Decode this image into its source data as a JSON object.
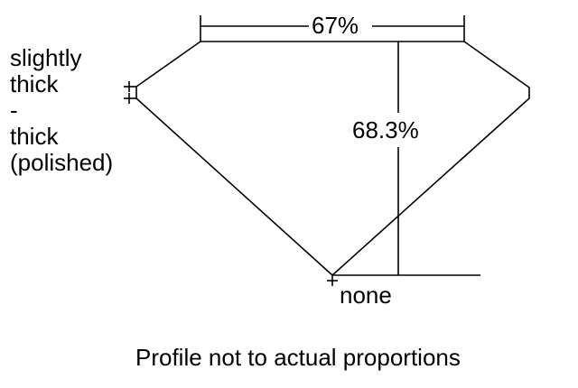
{
  "diagram": {
    "table_width_label": "67%",
    "total_depth_label": "68.3%",
    "girdle_label_lines": [
      "slightly",
      "thick",
      "-",
      "thick",
      "(polished)"
    ],
    "culet_label": "none",
    "caption": "Profile not to actual proportions",
    "line_color": "#000000"
  }
}
